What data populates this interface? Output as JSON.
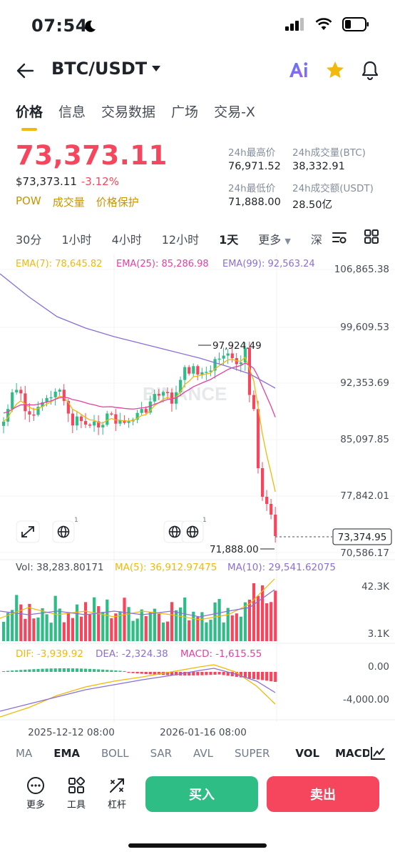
{
  "status": {
    "time": "07:54"
  },
  "header": {
    "pair": "BTC/USDT"
  },
  "tabs": [
    {
      "label": "价格"
    },
    {
      "label": "信息"
    },
    {
      "label": "交易数据"
    },
    {
      "label": "广场"
    },
    {
      "label": "交易-X"
    }
  ],
  "price": {
    "last": "73,373.11",
    "usd": "$73,373.11",
    "change": "-3.12%"
  },
  "tags": [
    "POW",
    "成交量",
    "价格保护"
  ],
  "stats": {
    "high_label": "24h最高价",
    "high": "76,971.52",
    "vol_btc_label": "24h成交量(BTC)",
    "vol_btc": "38,332.91",
    "low_label": "24h最低价",
    "low": "71,888.00",
    "vol_usdt_label": "24h成交额(USDT)",
    "vol_usdt": "28.50亿"
  },
  "intervals": [
    {
      "label": "30分"
    },
    {
      "label": "1小时"
    },
    {
      "label": "4小时"
    },
    {
      "label": "12小时"
    },
    {
      "label": "1天"
    },
    {
      "label": "更多"
    },
    {
      "label": "深"
    }
  ],
  "chart": {
    "ema_labels": [
      {
        "text": "EMA(7): 78,645.82",
        "color": "#f0b90b"
      },
      {
        "text": "EMA(25): 85,286.98",
        "color": "#e63fa2"
      },
      {
        "text": "EMA(99): 92,563.24",
        "color": "#8b6fd6"
      }
    ],
    "price_ticks": [
      "106,865.38",
      "99,609.53",
      "92,353.69",
      "85,097.85",
      "77,842.01",
      "70,586.17"
    ],
    "current_price_label": "73,374.95",
    "high_marker": "97,924.49",
    "low_marker": "71,888.00",
    "event_badge_count": "1",
    "vol_label": "Vol: 38,283.80171",
    "ma5_label": "MA(5): 36,912.97475",
    "ma10_label": "MA(10): 29,541.62075",
    "vol_ticks": [
      "42.3K",
      "3.1K"
    ],
    "dif_label": "DIF: -3,939.92",
    "dea_label": "DEA: -2,324.38",
    "macd_label": "MACD: -1,615.55",
    "macd_ticks": [
      "0.00",
      "-4,000.00"
    ],
    "date_ticks": [
      "2025-12-12 08:00",
      "2026-01-16 08:00"
    ],
    "watermark": "BINANCE",
    "colors": {
      "up": "#2ebd85",
      "down": "#f6465d",
      "ema7": "#f0b90b",
      "ema25": "#e63fa2",
      "ema99": "#8b6fd6"
    }
  },
  "indicators": [
    {
      "label": "MA"
    },
    {
      "label": "EMA"
    },
    {
      "label": "BOLL"
    },
    {
      "label": "SAR"
    },
    {
      "label": "AVL"
    },
    {
      "label": "SUPER"
    },
    {
      "label": "VOL"
    },
    {
      "label": "MACD"
    }
  ],
  "bottom": {
    "more": "更多",
    "tools": "工具",
    "leverage": "杠杆",
    "buy": "买入",
    "sell": "卖出"
  }
}
